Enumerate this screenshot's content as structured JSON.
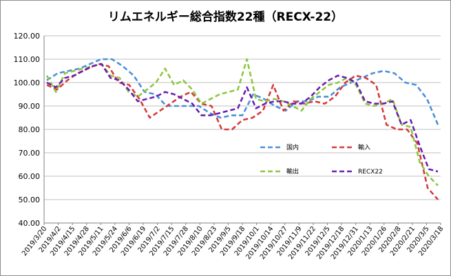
{
  "chart_data": {
    "type": "line",
    "title": "リムエネルギー総合指数22種（RECX-22）",
    "xlabel": "",
    "ylabel": "",
    "ylim": [
      40,
      120
    ],
    "y_ticks": [
      "40.00",
      "50.00",
      "60.00",
      "70.00",
      "80.00",
      "90.00",
      "100.00",
      "110.00",
      "120.00"
    ],
    "x_tick_labels": [
      "2019/3/20",
      "2019/4/2",
      "2019/4/15",
      "2019/4/28",
      "2019/5/11",
      "2019/5/24",
      "2019/6/6",
      "2019/6/19",
      "2019/7/2",
      "2019/7/15",
      "2019/7/28",
      "2019/8/10",
      "2019/8/23",
      "2019/9/5",
      "2019/9/18",
      "2019/10/1",
      "2019/10/14",
      "2019/10/27",
      "2019/11/9",
      "2019/11/22",
      "2019/12/5",
      "2019/12/18",
      "2019/12/31",
      "2020/1/13",
      "2020/1/26",
      "2020/2/8",
      "2020/2/21",
      "2020/3/5",
      "2020/3/18"
    ],
    "grid": "horizontal",
    "legend_position": "inside-right",
    "series": [
      {
        "name": "国内",
        "color": "#4a90d9",
        "values": [
          101,
          104,
          105,
          106,
          108,
          110,
          110,
          107,
          103,
          96,
          95,
          90,
          90,
          90,
          90,
          87,
          85,
          86,
          86,
          95,
          93,
          90,
          88,
          92,
          92,
          94,
          94,
          98,
          100,
          102,
          104,
          105,
          104,
          100,
          99,
          93,
          82
        ]
      },
      {
        "name": "輸入",
        "color": "#d63a3a",
        "values": [
          99,
          97,
          101,
          104,
          106,
          108,
          107,
          100,
          99,
          93,
          85,
          88,
          91,
          94,
          96,
          91,
          90,
          80,
          80,
          84,
          85,
          88,
          99,
          88,
          92,
          91,
          92,
          91,
          94,
          100,
          103,
          102,
          99,
          82,
          80,
          80,
          74,
          55,
          50
        ]
      },
      {
        "name": "輸出",
        "color": "#8dc63f",
        "values": [
          103,
          96,
          104,
          105,
          106,
          107,
          108,
          103,
          102,
          96,
          94,
          97,
          100,
          106,
          99,
          101,
          97,
          91,
          93,
          95,
          96,
          97,
          110,
          93,
          92,
          93,
          92,
          90,
          88,
          93,
          96,
          99,
          100,
          102,
          99,
          91,
          90,
          91,
          93,
          82,
          81,
          66,
          60,
          56
        ]
      },
      {
        "name": "RECX22",
        "color": "#6a1fb0",
        "values": [
          100,
          98,
          102,
          103,
          105,
          107,
          108,
          102,
          101,
          97,
          92,
          93,
          94,
          96,
          95,
          93,
          91,
          86,
          86,
          87,
          88,
          89,
          98,
          89,
          91,
          92,
          92,
          91,
          91,
          94,
          98,
          101,
          103,
          102,
          100,
          92,
          91,
          91,
          92,
          82,
          84,
          73,
          63,
          62
        ]
      }
    ]
  }
}
